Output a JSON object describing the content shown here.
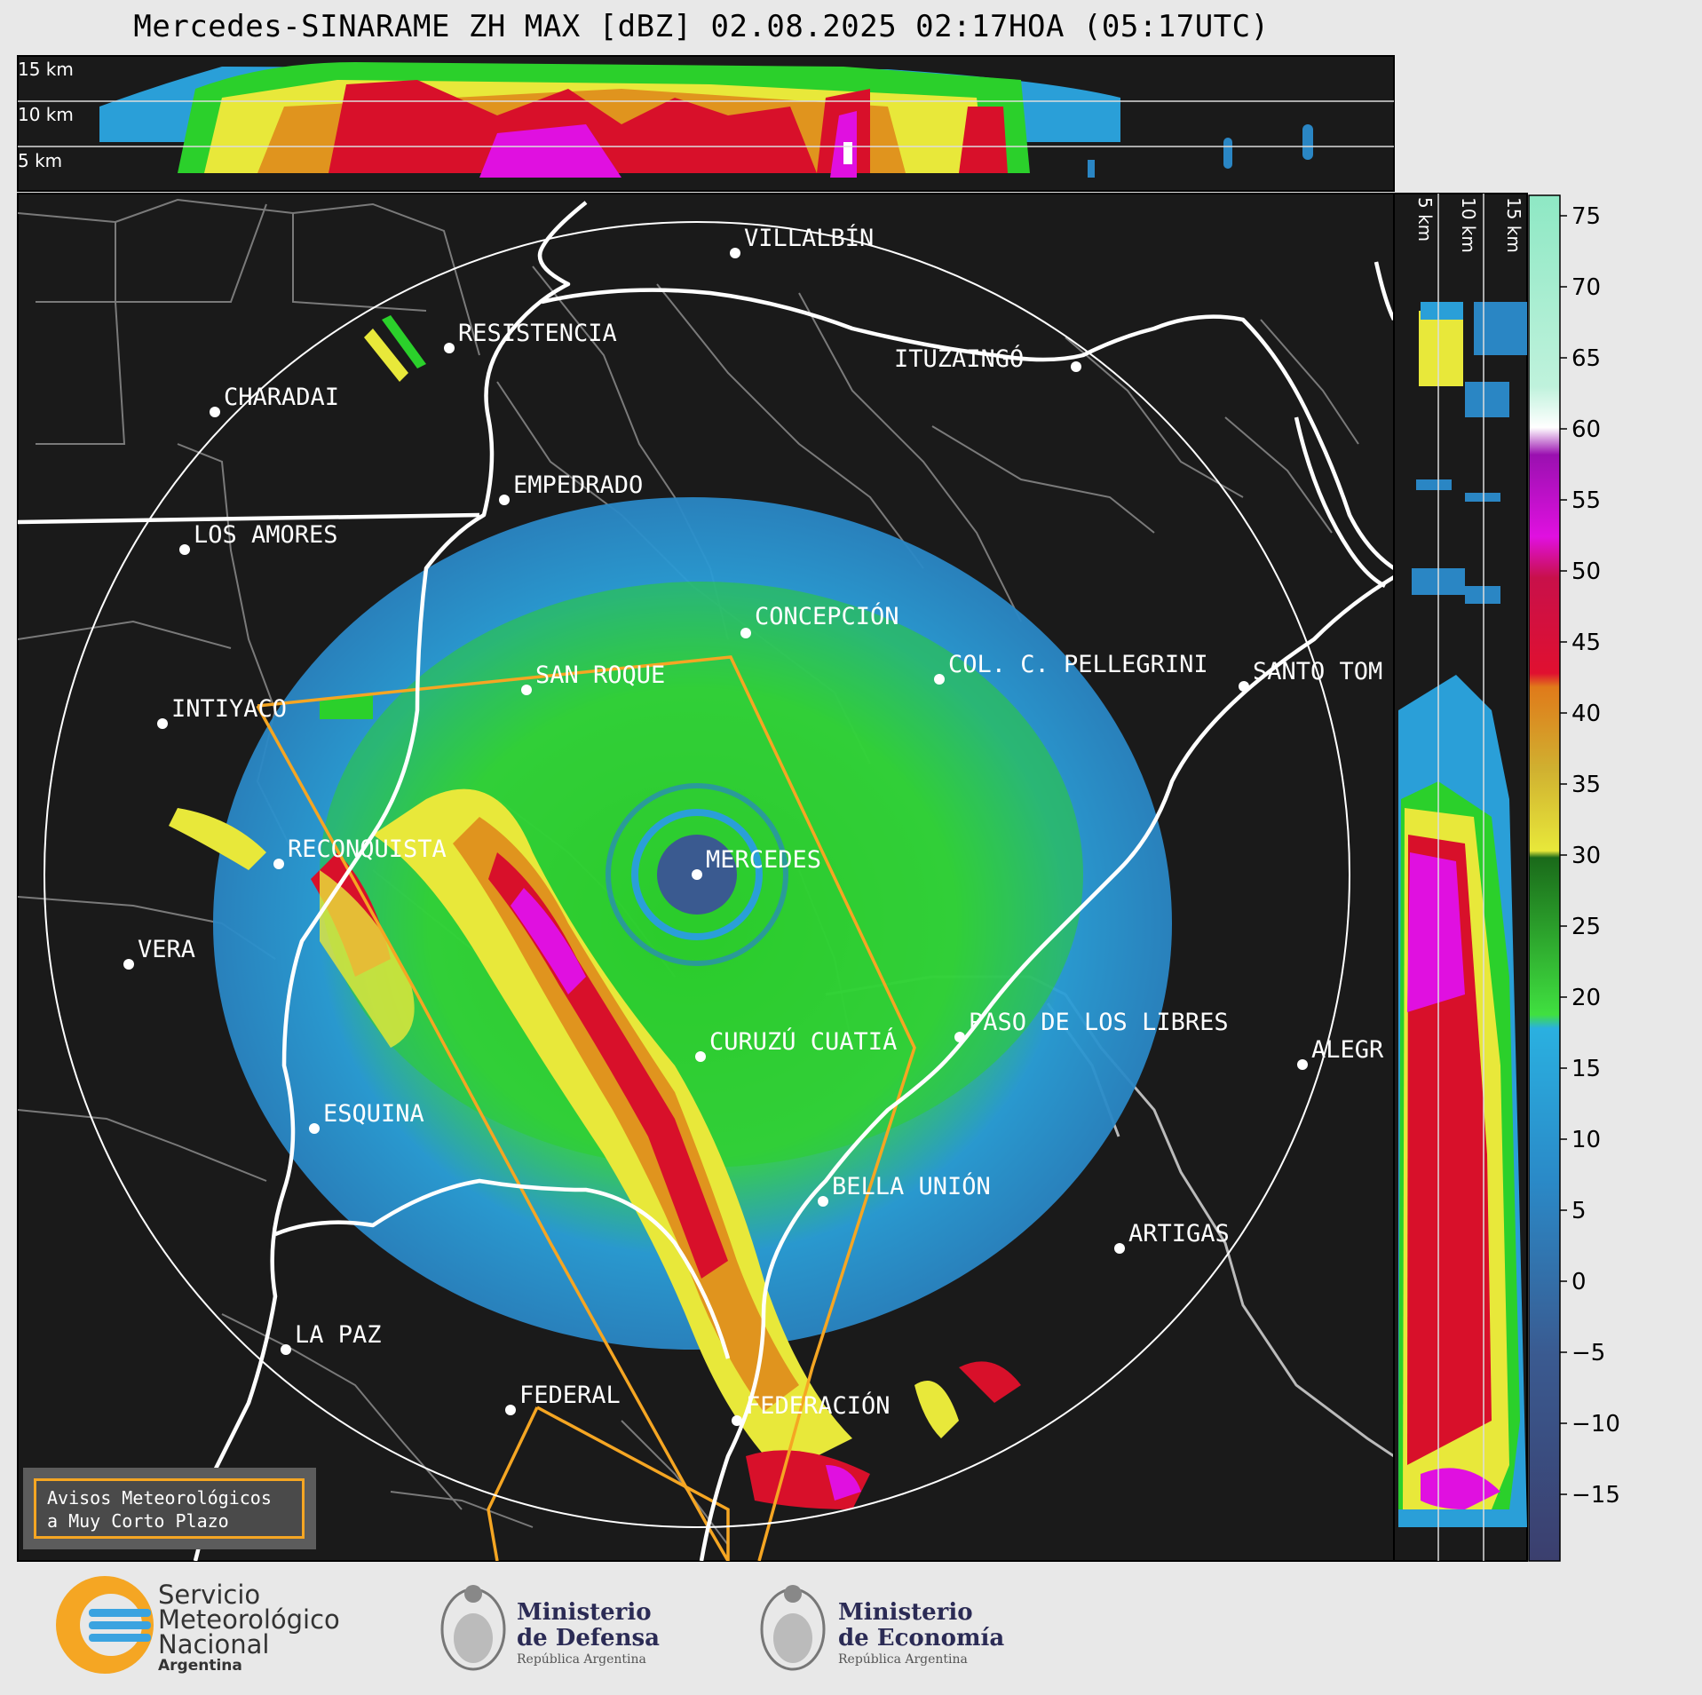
{
  "title": "Mercedes-SINARAME ZH MAX [dBZ] 02.08.2025 02:17HOA (05:17UTC)",
  "top_panel": {
    "labels": [
      "15 km",
      "10 km",
      "5 km"
    ]
  },
  "side_panel": {
    "labels": [
      "5 km",
      "10 km",
      "15 km"
    ]
  },
  "colorbar": {
    "ticks": [
      "75",
      "70",
      "65",
      "60",
      "55",
      "50",
      "45",
      "40",
      "35",
      "30",
      "25",
      "20",
      "15",
      "10",
      "5",
      "0",
      "−5",
      "−10",
      "−15"
    ],
    "unit": "dBZ",
    "colors": {
      "min": "#3b3f6e",
      "low": "#3a6fa8",
      "light": "#2a9fd8",
      "green": "#2bd02b",
      "yellow": "#e8e83a",
      "orange": "#e0941e",
      "red": "#d8102a",
      "magenta": "#e010e0",
      "white": "#ffffff",
      "mint": "#8ee8c4"
    }
  },
  "cities": [
    {
      "name": "VILLALBÍN"
    },
    {
      "name": "RESISTENCIA"
    },
    {
      "name": "CHARADAI"
    },
    {
      "name": "ITUZAINGÓ"
    },
    {
      "name": "EMPEDRADO"
    },
    {
      "name": "LOS AMORES"
    },
    {
      "name": "CONCEPCIÓN"
    },
    {
      "name": "SAN ROQUE"
    },
    {
      "name": "COL. C. PELLEGRINI"
    },
    {
      "name": "SANTO TOM"
    },
    {
      "name": "INTIYACO"
    },
    {
      "name": "MERCEDES"
    },
    {
      "name": "RECONQUISTA"
    },
    {
      "name": "VERA"
    },
    {
      "name": "CURUZÚ CUATIÁ"
    },
    {
      "name": "PASO DE LOS LIBRES"
    },
    {
      "name": "ALEGR"
    },
    {
      "name": "ESQUINA"
    },
    {
      "name": "BELLA UNIÓN"
    },
    {
      "name": "ARTIGAS"
    },
    {
      "name": "LA PAZ"
    },
    {
      "name": "FEDERAL"
    },
    {
      "name": "FEDERACIÓN"
    }
  ],
  "warning_box": {
    "line1": "Avisos Meteorológicos",
    "line2": "a Muy Corto Plazo"
  },
  "logos": {
    "smn": {
      "line1": "Servicio",
      "line2": "Meteorológico",
      "line3": "Nacional",
      "line4": "Argentina"
    },
    "defensa": {
      "line1": "Ministerio",
      "line2": "de Defensa",
      "line3": "República Argentina"
    },
    "economia": {
      "line1": "Ministerio",
      "line2": "de Economía",
      "line3": "República Argentina"
    }
  }
}
